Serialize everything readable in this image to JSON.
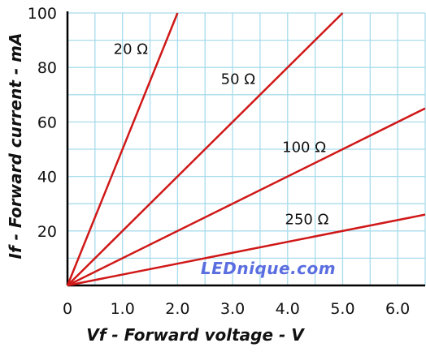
{
  "chart_data": {
    "type": "line",
    "xlabel": "Vf - Forward voltage - V",
    "ylabel": "If - Forward current - mA",
    "xlim": [
      0,
      6.5
    ],
    "ylim": [
      0,
      100
    ],
    "x_ticks": [
      "0",
      "1.0",
      "2.0",
      "3.0",
      "4.0",
      "5.0",
      "6.0"
    ],
    "y_ticks": [
      "20",
      "40",
      "60",
      "80",
      "100"
    ],
    "grid": true,
    "series": [
      {
        "name": "20 Ω",
        "x": [
          0,
          2.0
        ],
        "y": [
          0,
          100
        ]
      },
      {
        "name": "50 Ω",
        "x": [
          0,
          5.0
        ],
        "y": [
          0,
          100
        ]
      },
      {
        "name": "100 Ω",
        "x": [
          0,
          6.5
        ],
        "y": [
          0,
          65
        ]
      },
      {
        "name": "250 Ω",
        "x": [
          0,
          6.5
        ],
        "y": [
          0,
          26
        ]
      }
    ],
    "colors": {
      "line": "#d01818",
      "grid": "#a8dcec",
      "axis": "#000000"
    },
    "watermark": "LEDnique.com"
  }
}
